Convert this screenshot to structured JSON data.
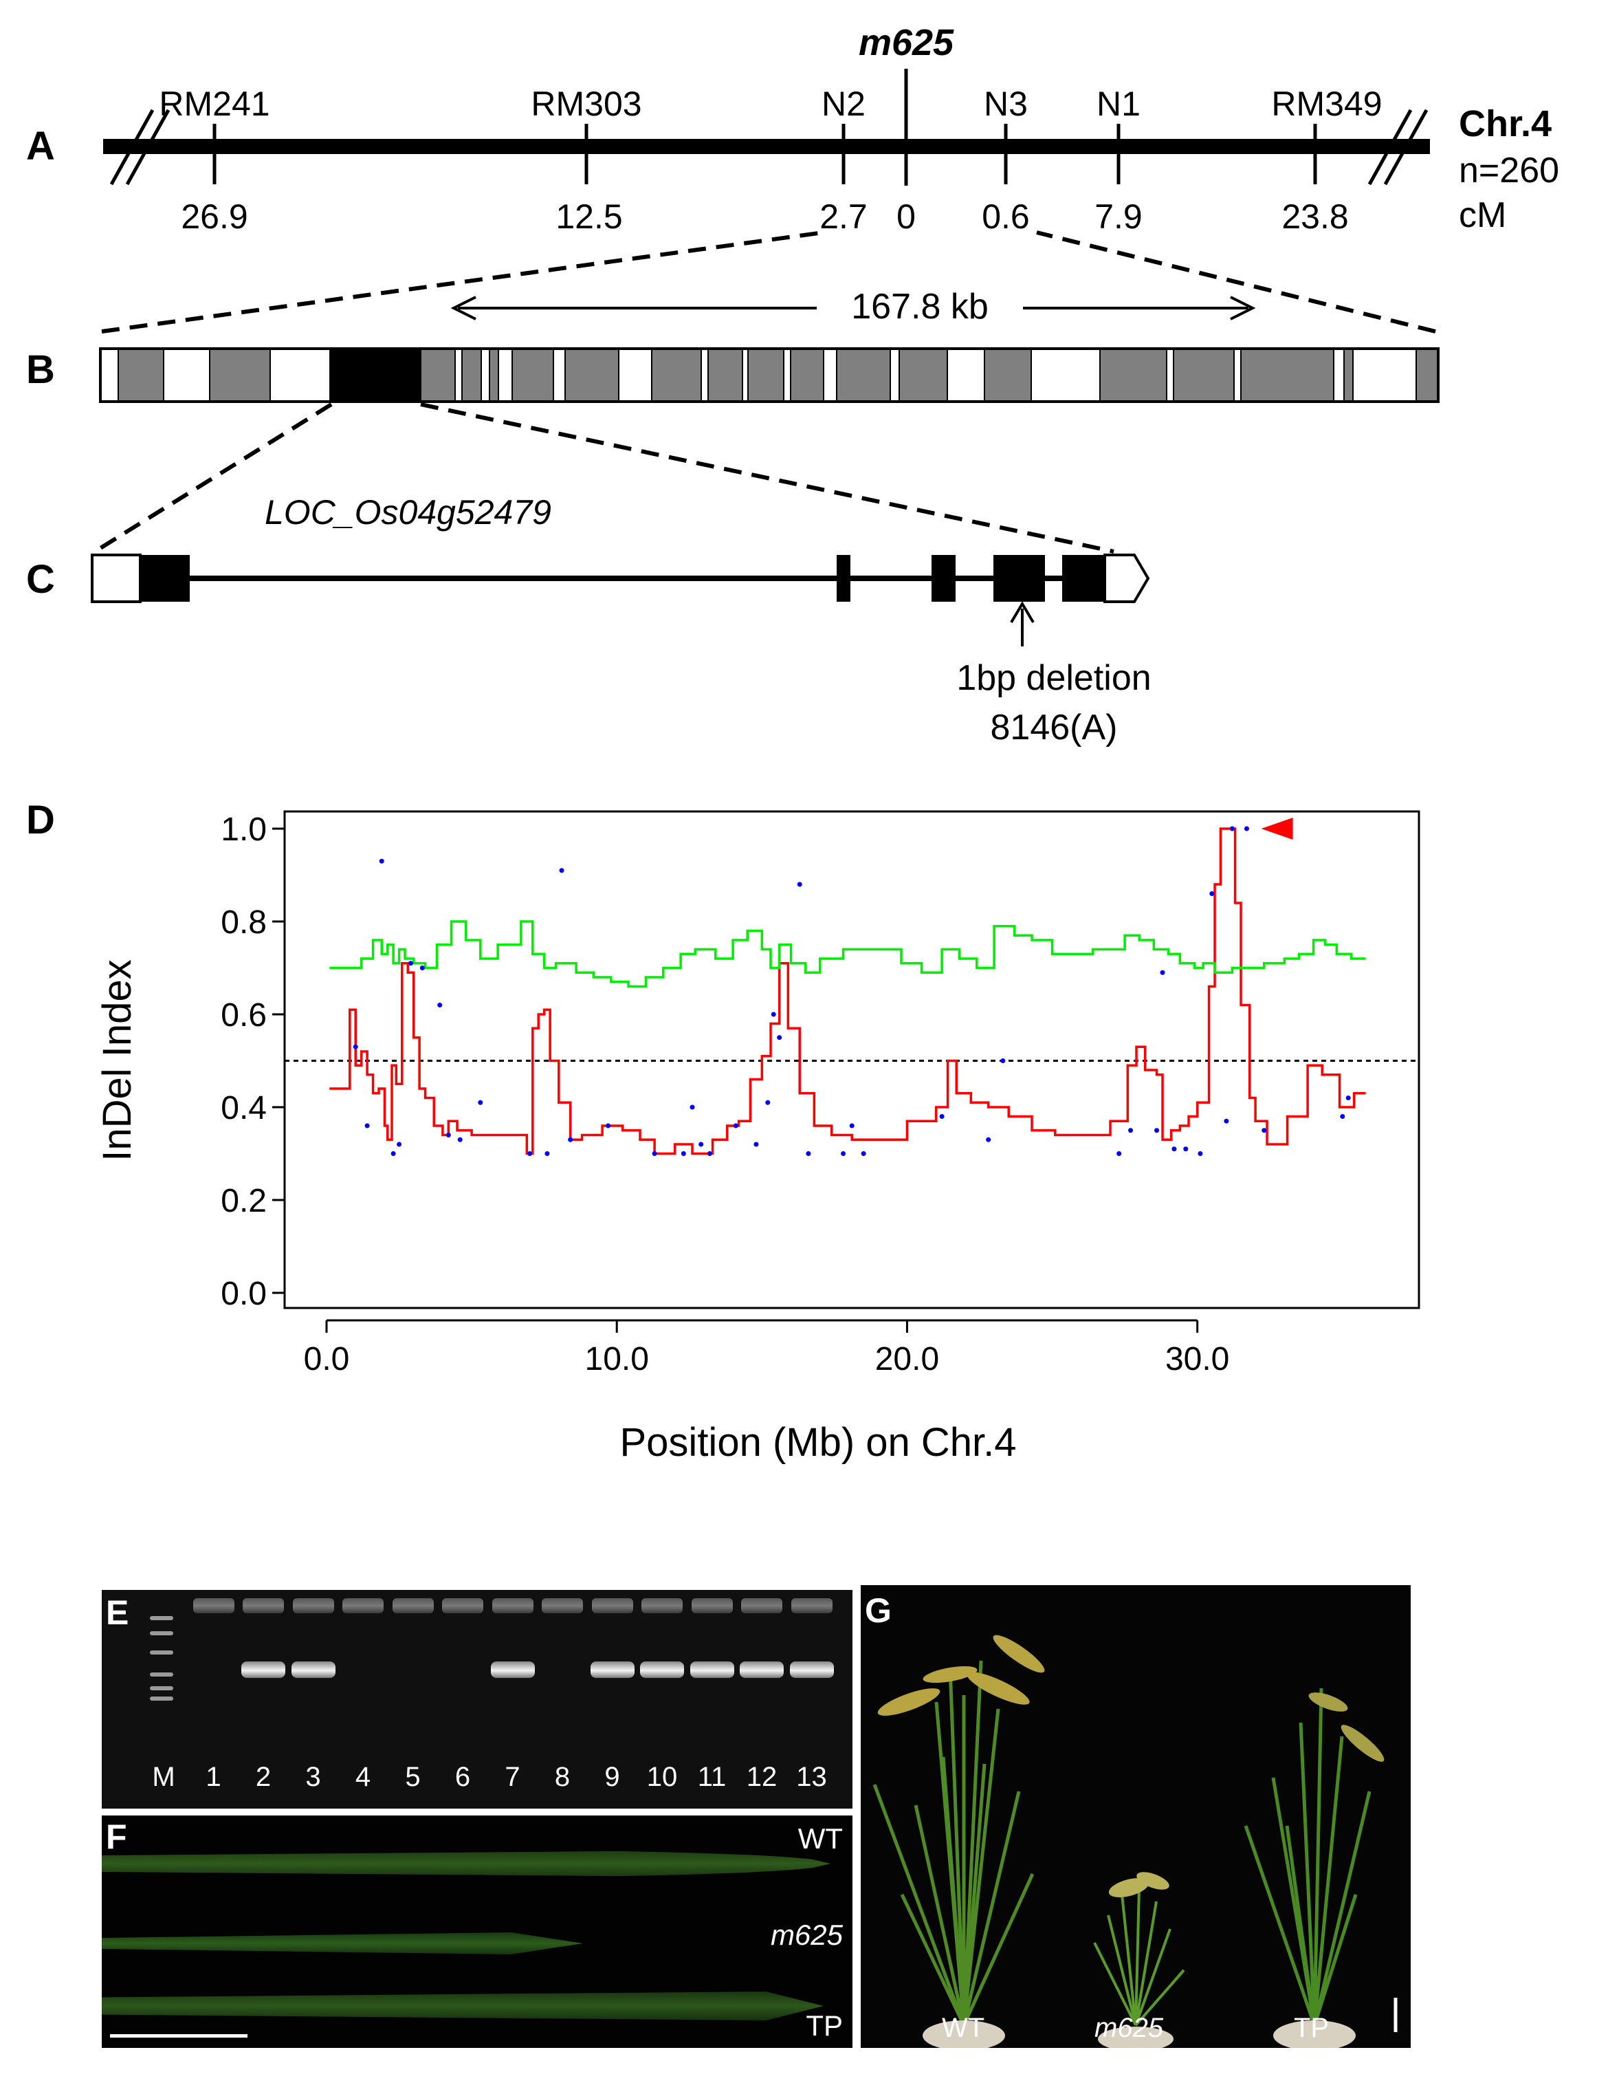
{
  "panel_letters": {
    "a": "A",
    "b": "B",
    "c": "C",
    "d": "D",
    "e": "E",
    "f": "F",
    "g": "G"
  },
  "panel_a": {
    "gene_title": "m625",
    "chromosome": "Chr.4",
    "population": "n=260",
    "unit": "cM",
    "markers": [
      {
        "name": "RM241",
        "distance": "26.9"
      },
      {
        "name": "RM303",
        "distance": "12.5"
      },
      {
        "name": "N2",
        "distance": "2.7"
      },
      {
        "name": "",
        "distance": "0"
      },
      {
        "name": "N3",
        "distance": "0.6"
      },
      {
        "name": "N1",
        "distance": "7.9"
      },
      {
        "name": "RM349",
        "distance": "23.8"
      }
    ]
  },
  "panel_b": {
    "interval_label": "167.8 kb",
    "segment_colors": {
      "gray": "#808080",
      "white": "#ffffff",
      "black": "#000000"
    }
  },
  "panel_c": {
    "gene_name": "LOC_Os04g52479",
    "mutation_line1": "1bp deletion",
    "mutation_line2": "8146(A)"
  },
  "panel_d": {
    "ylabel": "InDel Index",
    "xlabel": "Position (Mb) on Chr.4",
    "yticks": [
      "0.0",
      "0.2",
      "0.4",
      "0.6",
      "0.8",
      "1.0"
    ],
    "xticks": [
      "0.0",
      "10.0",
      "20.0",
      "30.0"
    ]
  },
  "chart_data": {
    "type": "line",
    "title": "",
    "xlabel": "Position (Mb) on Chr.4",
    "ylabel": "InDel Index",
    "xlim": [
      0,
      36
    ],
    "ylim": [
      0,
      1.0
    ],
    "threshold": 0.5,
    "marker": {
      "x": 32.2,
      "y": 1.0,
      "color": "#ff0000",
      "shape": "left-pointing triangle"
    },
    "colors": {
      "line_red": "#ff0000",
      "line_green": "#00ee00",
      "points": "#0000ff",
      "threshold": "#000000"
    },
    "series": [
      {
        "color": "#ff0000",
        "x": [
          0.1,
          0.6,
          0.8,
          1.0,
          1.2,
          1.4,
          1.6,
          1.8,
          2.0,
          2.1,
          2.25,
          2.4,
          2.6,
          2.8,
          3.0,
          3.2,
          3.4,
          3.7,
          4.0,
          4.2,
          4.5,
          5.0,
          6.0,
          6.9,
          7.1,
          7.3,
          7.5,
          7.7,
          8.0,
          8.4,
          8.8,
          9.5,
          10.2,
          10.8,
          11.3,
          12.0,
          12.6,
          13.3,
          13.8,
          14.2,
          14.6,
          15.0,
          15.3,
          15.6,
          15.9,
          16.3,
          16.8,
          17.4,
          18.1,
          19.0,
          20.0,
          21.0,
          21.4,
          21.7,
          22.2,
          22.8,
          23.5,
          24.3,
          25.1,
          26.0,
          27.0,
          27.6,
          27.9,
          28.2,
          28.6,
          28.8,
          29.1,
          29.4,
          29.7,
          30.0,
          30.4,
          30.6,
          30.8,
          31.1,
          31.3,
          31.5,
          31.8,
          32.0,
          32.4,
          33.1,
          33.8,
          34.3,
          34.9,
          35.4,
          35.8
        ],
        "y": [
          0.44,
          0.44,
          0.61,
          0.49,
          0.52,
          0.47,
          0.43,
          0.44,
          0.36,
          0.33,
          0.49,
          0.45,
          0.71,
          0.69,
          0.55,
          0.44,
          0.42,
          0.36,
          0.34,
          0.37,
          0.35,
          0.34,
          0.34,
          0.3,
          0.57,
          0.6,
          0.61,
          0.5,
          0.41,
          0.33,
          0.34,
          0.36,
          0.35,
          0.33,
          0.3,
          0.32,
          0.3,
          0.33,
          0.36,
          0.37,
          0.46,
          0.51,
          0.58,
          0.71,
          0.57,
          0.43,
          0.36,
          0.34,
          0.33,
          0.33,
          0.37,
          0.4,
          0.5,
          0.43,
          0.41,
          0.4,
          0.38,
          0.35,
          0.34,
          0.34,
          0.37,
          0.49,
          0.53,
          0.48,
          0.47,
          0.33,
          0.35,
          0.36,
          0.38,
          0.41,
          0.66,
          0.88,
          1.0,
          1.0,
          0.84,
          0.62,
          0.42,
          0.37,
          0.32,
          0.38,
          0.49,
          0.47,
          0.4,
          0.43,
          0.43
        ]
      },
      {
        "color": "#00ee00",
        "x": [
          0.1,
          0.6,
          1.2,
          1.6,
          1.9,
          2.1,
          2.3,
          2.5,
          2.7,
          3.0,
          3.4,
          3.8,
          4.3,
          4.8,
          5.3,
          5.9,
          6.7,
          7.1,
          7.5,
          7.9,
          8.6,
          9.2,
          9.8,
          10.4,
          11.0,
          11.6,
          12.2,
          12.7,
          13.4,
          14.0,
          14.5,
          15.0,
          15.3,
          15.6,
          16.0,
          16.5,
          17.0,
          17.8,
          18.6,
          19.2,
          19.8,
          20.5,
          21.2,
          21.8,
          22.4,
          23.0,
          23.7,
          24.3,
          25.0,
          25.6,
          26.4,
          27.0,
          27.5,
          28.0,
          28.5,
          29.0,
          29.4,
          29.9,
          30.2,
          30.6,
          31.2,
          31.7,
          32.3,
          33.0,
          33.5,
          34.0,
          34.4,
          34.8,
          35.3,
          35.8
        ],
        "y": [
          0.7,
          0.7,
          0.72,
          0.76,
          0.73,
          0.75,
          0.71,
          0.74,
          0.72,
          0.71,
          0.7,
          0.75,
          0.8,
          0.76,
          0.72,
          0.75,
          0.8,
          0.73,
          0.7,
          0.71,
          0.69,
          0.68,
          0.67,
          0.66,
          0.68,
          0.7,
          0.73,
          0.74,
          0.72,
          0.76,
          0.78,
          0.74,
          0.7,
          0.75,
          0.71,
          0.69,
          0.72,
          0.74,
          0.74,
          0.74,
          0.71,
          0.69,
          0.74,
          0.72,
          0.7,
          0.79,
          0.77,
          0.76,
          0.73,
          0.73,
          0.74,
          0.74,
          0.77,
          0.76,
          0.74,
          0.73,
          0.71,
          0.7,
          0.71,
          0.69,
          0.7,
          0.7,
          0.71,
          0.72,
          0.73,
          0.76,
          0.75,
          0.73,
          0.72,
          0.72
        ]
      }
    ],
    "points": {
      "x": [
        1.0,
        1.4,
        1.9,
        2.3,
        2.5,
        2.9,
        3.3,
        3.9,
        4.2,
        4.6,
        5.3,
        7.0,
        7.6,
        8.1,
        8.4,
        9.7,
        11.3,
        12.3,
        12.6,
        12.9,
        13.2,
        14.1,
        14.8,
        15.2,
        15.4,
        15.6,
        16.3,
        16.6,
        17.8,
        18.1,
        18.5,
        21.2,
        22.8,
        23.3,
        27.3,
        27.7,
        28.6,
        28.8,
        29.2,
        29.6,
        30.1,
        30.5,
        31.0,
        31.2,
        31.7,
        32.3,
        35.0,
        35.2
      ],
      "y": [
        0.53,
        0.36,
        0.93,
        0.3,
        0.32,
        0.71,
        0.7,
        0.62,
        0.34,
        0.33,
        0.41,
        0.3,
        0.3,
        0.91,
        0.33,
        0.36,
        0.3,
        0.3,
        0.4,
        0.32,
        0.3,
        0.36,
        0.32,
        0.41,
        0.6,
        0.55,
        0.88,
        0.3,
        0.3,
        0.36,
        0.3,
        0.38,
        0.33,
        0.5,
        0.3,
        0.35,
        0.35,
        0.69,
        0.31,
        0.31,
        0.3,
        0.86,
        0.37,
        1.0,
        1.0,
        0.35,
        0.38,
        0.42
      ]
    }
  },
  "panel_e": {
    "lanes": [
      "M",
      "1",
      "2",
      "3",
      "4",
      "5",
      "6",
      "7",
      "8",
      "9",
      "10",
      "11",
      "12",
      "13"
    ],
    "amplified": [
      false,
      false,
      true,
      true,
      false,
      false,
      false,
      true,
      false,
      true,
      true,
      true,
      true,
      true
    ]
  },
  "panel_f": {
    "labels": [
      "WT",
      "m625",
      "TP"
    ]
  },
  "panel_g": {
    "labels": [
      "WT",
      "m625",
      "TP"
    ]
  }
}
